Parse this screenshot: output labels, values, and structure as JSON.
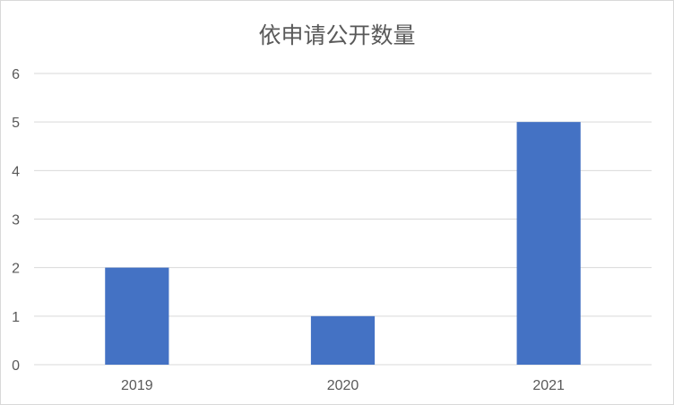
{
  "chart_data": {
    "type": "bar",
    "title": "依申请公开数量",
    "categories": [
      "2019",
      "2020",
      "2021"
    ],
    "values": [
      2,
      1,
      5
    ],
    "ylim": [
      0,
      6
    ],
    "yticks": [
      0,
      1,
      2,
      3,
      4,
      5,
      6
    ],
    "grid": true,
    "legend": "none",
    "colors": {
      "bar": "#4472C4",
      "grid": "#D9D9D9",
      "text": "#595959"
    }
  }
}
